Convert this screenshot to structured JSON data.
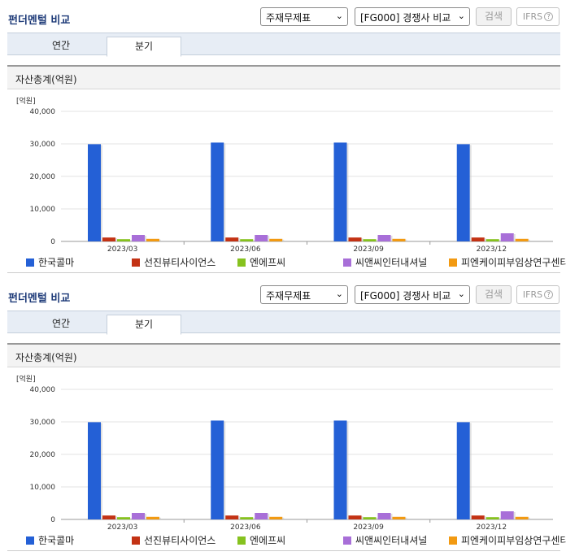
{
  "header": {
    "title": "펀더멘털 비교",
    "select1": "주재무제표",
    "select2": "[FG000] 경쟁사 비교",
    "search_label": "검색",
    "ifrs_label": "IFRS"
  },
  "tabs": [
    {
      "label": "연간",
      "active": false
    },
    {
      "label": "분기",
      "active": true
    }
  ],
  "chart_title": "자산총계(억원)",
  "chart_data": {
    "type": "bar",
    "unit_label": "[억원]",
    "categories": [
      "2023/03",
      "2023/06",
      "2023/09",
      "2023/12"
    ],
    "ylim": [
      0,
      40000
    ],
    "yticks": [
      "0",
      "10,000",
      "20,000",
      "30,000",
      "40,000"
    ],
    "ytick_values": [
      0,
      10000,
      20000,
      30000,
      40000
    ],
    "grid": true,
    "legend_position": "bottom",
    "series": [
      {
        "name": "한국콜마",
        "color": "#2460d6",
        "values": [
          29900,
          30400,
          30400,
          29900
        ]
      },
      {
        "name": "선진뷰티사이언스",
        "color": "#c33214",
        "values": [
          1200,
          1200,
          1200,
          1200
        ]
      },
      {
        "name": "엔에프씨",
        "color": "#86c21f",
        "values": [
          700,
          700,
          700,
          700
        ]
      },
      {
        "name": "씨앤씨인터내셔널",
        "color": "#a86fd8",
        "values": [
          2000,
          2000,
          2000,
          2500
        ]
      },
      {
        "name": "피엔케이피부임상연구센타",
        "color": "#f29a12",
        "values": [
          800,
          800,
          800,
          800
        ]
      }
    ]
  }
}
